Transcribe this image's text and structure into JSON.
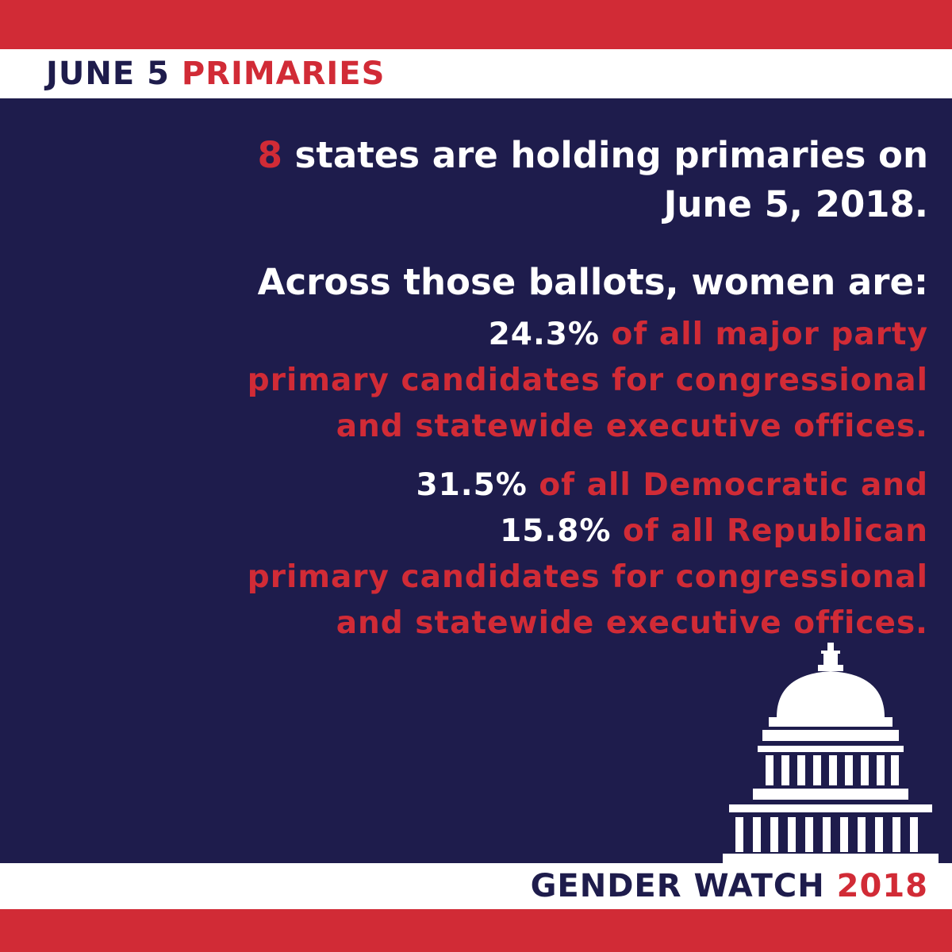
{
  "colors": {
    "red": "#d12b36",
    "navy": "#1e1c4c",
    "white": "#ffffff"
  },
  "header": {
    "title_part1": "JUNE 5 ",
    "title_part2": "PRIMARIES"
  },
  "intro": {
    "count": "8",
    "line1_rest": " states are holding primaries on",
    "line2": "June 5, 2018."
  },
  "lead": {
    "text": "Across those ballots, women are:"
  },
  "stat_overall": {
    "percent": "24.3%",
    "line1_rest": " of all major party",
    "line2": "primary candidates for congressional",
    "line3": "and statewide executive offices."
  },
  "stat_party": {
    "dem_percent": "31.5%",
    "dem_rest": " of all Democratic and",
    "rep_percent": "15.8%",
    "rep_rest": " of all Republican",
    "line3": "primary candidates for congressional",
    "line4": "and statewide executive offices."
  },
  "footer": {
    "brand_part1": "GENDER WATCH ",
    "brand_part2": "2018"
  },
  "icons": {
    "logo": "capitol-icon"
  }
}
